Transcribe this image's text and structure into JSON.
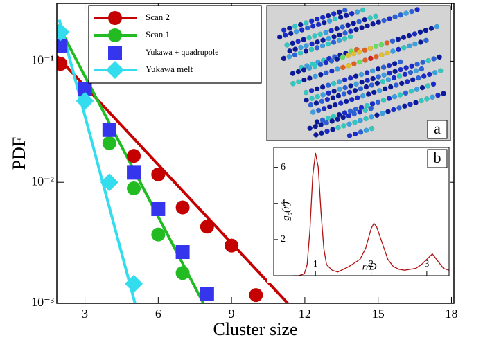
{
  "chart_data": [
    {
      "type": "scatter",
      "x_label": "Cluster size",
      "y_label": "PDF",
      "xlim": [
        1.85,
        18.1
      ],
      "xticks": [
        3,
        6,
        9,
        12,
        15,
        18
      ],
      "ylim": [
        0.001,
        0.3
      ],
      "log_y": true,
      "yticks": [
        {
          "value": 0.001,
          "label": "10⁻³"
        },
        {
          "value": 0.01,
          "label": "10⁻²"
        },
        {
          "value": 0.1,
          "label": "10⁻¹"
        }
      ],
      "legend": "upper left",
      "series": [
        {
          "name": "Scan 2",
          "color": "#c40000",
          "marker": "circle",
          "x": [
            2,
            5,
            6,
            7,
            8,
            9,
            10
          ],
          "values": [
            0.095,
            0.0165,
            0.0116,
            0.0062,
            0.0043,
            0.003,
            0.00117
          ],
          "fit": {
            "x": [
              1.85,
              11.3
            ],
            "values": [
              0.11,
              0.001
            ]
          }
        },
        {
          "name": "Scan 1",
          "color": "#22bb22",
          "marker": "circle",
          "x": [
            4,
            5,
            6,
            7
          ],
          "values": [
            0.021,
            0.0089,
            0.0037,
            0.00178
          ],
          "fit": {
            "x": [
              1.9,
              7.85
            ],
            "values": [
              0.2,
              0.001
            ]
          }
        },
        {
          "name": "Yukawa + quadrupole",
          "color": "#3535ee",
          "marker": "square",
          "x": [
            2,
            3,
            4,
            5,
            6,
            7,
            8
          ],
          "values": [
            0.134,
            0.059,
            0.027,
            0.012,
            0.006,
            0.00265,
            0.0012
          ]
        },
        {
          "name": "Yukawa melt",
          "color": "#33ddee",
          "marker": "diamond",
          "x": [
            2,
            3,
            4,
            5
          ],
          "values": [
            0.174,
            0.047,
            0.01,
            0.00145
          ],
          "fit": {
            "x": [
              1.95,
              5.05
            ],
            "values": [
              0.22,
              0.001
            ]
          }
        }
      ]
    },
    {
      "type": "line",
      "panel_label": "b",
      "x_label": "r/D",
      "y_label": {
        "main": "g",
        "sub": "s",
        "rest": "(r)"
      },
      "xlim": [
        0.25,
        3.4
      ],
      "xticks": [
        1,
        2,
        3
      ],
      "ylim": [
        0,
        7.1
      ],
      "yticks": [
        2,
        4,
        6
      ],
      "series": [
        {
          "color": "#b01010",
          "x": [
            0.6,
            0.7,
            0.8,
            0.85,
            0.9,
            0.95,
            1.0,
            1.05,
            1.1,
            1.15,
            1.2,
            1.3,
            1.4,
            1.5,
            1.6,
            1.7,
            1.8,
            1.9,
            2.0,
            2.05,
            2.1,
            2.2,
            2.3,
            2.4,
            2.5,
            2.6,
            2.7,
            2.8,
            2.9,
            3.0,
            3.1,
            3.15,
            3.2,
            3.3,
            3.4
          ],
          "values": [
            0,
            0,
            0.1,
            0.6,
            2.5,
            5.5,
            6.8,
            6.0,
            3.5,
            1.5,
            0.6,
            0.3,
            0.2,
            0.35,
            0.5,
            0.7,
            0.9,
            1.5,
            2.6,
            2.9,
            2.7,
            1.8,
            0.9,
            0.5,
            0.35,
            0.3,
            0.35,
            0.4,
            0.6,
            0.9,
            1.2,
            1.0,
            0.8,
            0.4,
            0.3
          ]
        }
      ]
    }
  ],
  "image_panel": {
    "label": "a"
  }
}
